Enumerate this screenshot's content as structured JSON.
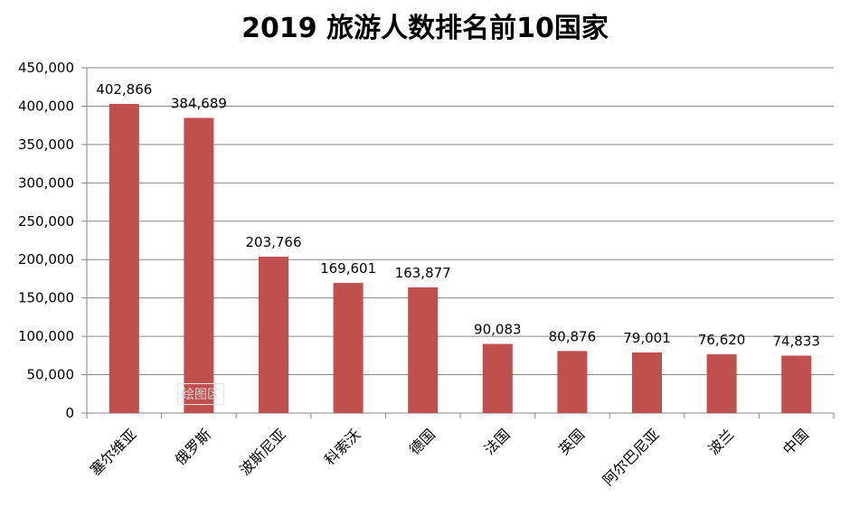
{
  "chart_data": {
    "type": "bar",
    "title": "2019 旅游人数排名前10国家",
    "xlabel": "",
    "ylabel": "",
    "categories": [
      "塞尔维亚",
      "俄罗斯",
      "波斯尼亚",
      "科索沃",
      "德国",
      "法国",
      "英国",
      "阿尔巴尼亚",
      "波兰",
      "中国"
    ],
    "values": [
      402866,
      384689,
      203766,
      169601,
      163877,
      90083,
      80876,
      79001,
      76620,
      74833
    ],
    "data_labels": [
      "402,866",
      "384,689",
      "203,766",
      "169,601",
      "163,877",
      "90,083",
      "80,876",
      "79,001",
      "76,620",
      "74,833"
    ],
    "ylim": [
      0,
      450000
    ],
    "yticks": [
      0,
      50000,
      100000,
      150000,
      200000,
      250000,
      300000,
      350000,
      400000,
      450000
    ],
    "ytick_labels": [
      "0",
      "50,000",
      "100,000",
      "150,000",
      "200,000",
      "250,000",
      "300,000",
      "350,000",
      "400,000",
      "450,000"
    ],
    "grid": true,
    "bar_color": "#c0504d",
    "grid_color": "#868686"
  },
  "watermark": "绘图区"
}
